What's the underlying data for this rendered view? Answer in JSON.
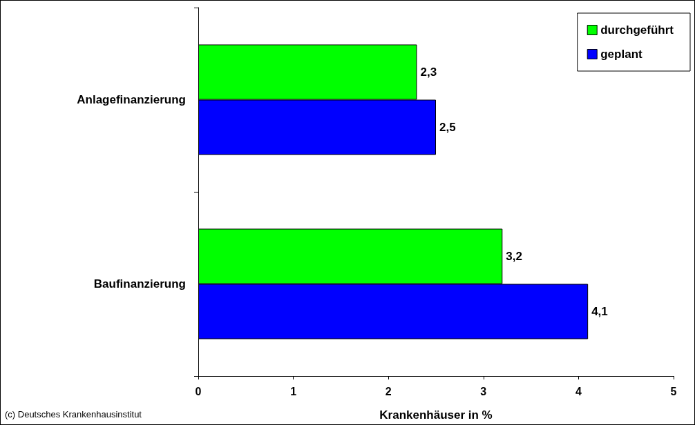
{
  "chart_data": {
    "type": "bar",
    "orientation": "horizontal",
    "categories": [
      "Anlagefinanzierung",
      "Baufinanzierung"
    ],
    "series": [
      {
        "name": "durchgeführt",
        "color": "#00ff00",
        "values": [
          2.3,
          3.2
        ],
        "value_labels": [
          "2,3",
          "3,2"
        ]
      },
      {
        "name": "geplant",
        "color": "#0000ff",
        "values": [
          2.5,
          4.1
        ],
        "value_labels": [
          "2,5",
          "4,1"
        ]
      }
    ],
    "xlim": [
      0,
      5
    ],
    "xticks": [
      0,
      1,
      2,
      3,
      4,
      5
    ],
    "xlabel": "Krankenhäuser in %",
    "grid": false,
    "legend": "top right",
    "annotations": [
      "(c) Deutsches Krankenhausinstitut"
    ]
  }
}
